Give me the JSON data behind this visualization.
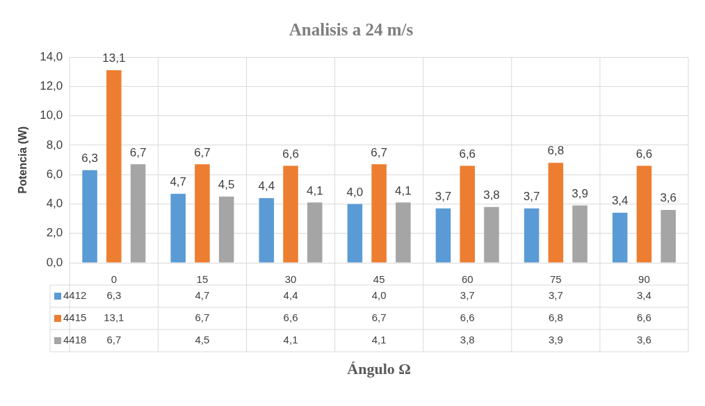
{
  "chart_data": {
    "type": "bar",
    "title": "Analisis a 24 m/s",
    "xlabel": "Ángulo Ω",
    "ylabel": "Potencia (W)",
    "categories": [
      "0",
      "15",
      "30",
      "45",
      "60",
      "75",
      "90"
    ],
    "series": [
      {
        "name": "4412",
        "color": "#5b9bd5",
        "values": [
          6.3,
          4.7,
          4.4,
          4.0,
          3.7,
          3.7,
          3.4
        ],
        "value_labels": [
          "6,3",
          "4,7",
          "4,4",
          "4,0",
          "3,7",
          "3,7",
          "3,4"
        ]
      },
      {
        "name": "4415",
        "color": "#ed7d31",
        "values": [
          13.1,
          6.7,
          6.6,
          6.7,
          6.6,
          6.8,
          6.6
        ],
        "value_labels": [
          "13,1",
          "6,7",
          "6,6",
          "6,7",
          "6,6",
          "6,8",
          "6,6"
        ]
      },
      {
        "name": "4418",
        "color": "#a5a5a5",
        "values": [
          6.7,
          4.5,
          4.1,
          4.1,
          3.8,
          3.9,
          3.6
        ],
        "value_labels": [
          "6,7",
          "4,5",
          "4,1",
          "4,1",
          "3,8",
          "3,9",
          "3,6"
        ]
      }
    ],
    "ylim": [
      0,
      14
    ],
    "yticks": [
      {
        "value": 0,
        "label": "0,0"
      },
      {
        "value": 2,
        "label": "2,0"
      },
      {
        "value": 4,
        "label": "4,0"
      },
      {
        "value": 6,
        "label": "6,0"
      },
      {
        "value": 8,
        "label": "8,0"
      },
      {
        "value": 10,
        "label": "10,0"
      },
      {
        "value": 12,
        "label": "12,0"
      },
      {
        "value": 14,
        "label": "14,0"
      }
    ],
    "grid": true,
    "legend": "bottom"
  }
}
